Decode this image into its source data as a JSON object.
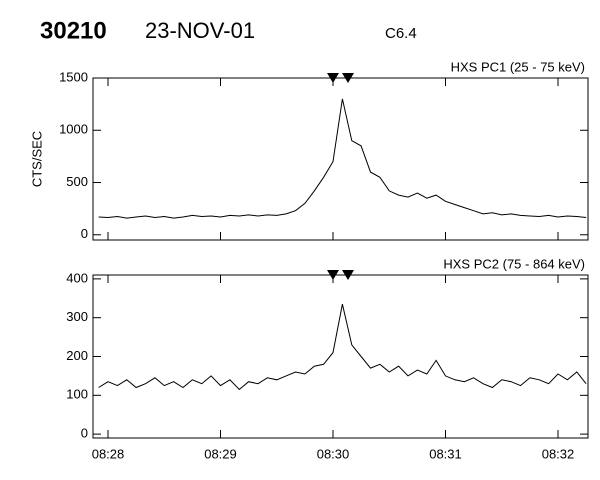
{
  "header": {
    "id": "30210",
    "date": "23-NOV-01",
    "class": "C6.4"
  },
  "chart_data": [
    {
      "type": "line",
      "title": "HXS PC1 (25 - 75 keV)",
      "ylabel": "CTS/SEC",
      "color": "#000000",
      "x": [
        1675,
        1680,
        1685,
        1690,
        1695,
        1700,
        1705,
        1710,
        1715,
        1720,
        1725,
        1730,
        1735,
        1740,
        1745,
        1750,
        1755,
        1760,
        1765,
        1770,
        1775,
        1780,
        1785,
        1790,
        1795,
        1800,
        1805,
        1810,
        1815,
        1820,
        1825,
        1830,
        1835,
        1840,
        1845,
        1850,
        1855,
        1860,
        1865,
        1870,
        1875,
        1880,
        1885,
        1890,
        1895,
        1900,
        1905,
        1910,
        1915,
        1920,
        1925,
        1930,
        1935
      ],
      "values": [
        170,
        165,
        175,
        160,
        170,
        180,
        165,
        175,
        160,
        170,
        185,
        175,
        180,
        170,
        185,
        180,
        190,
        180,
        190,
        185,
        200,
        230,
        300,
        420,
        550,
        700,
        1300,
        900,
        850,
        600,
        550,
        420,
        380,
        360,
        400,
        350,
        380,
        320,
        290,
        260,
        230,
        200,
        210,
        190,
        200,
        185,
        180,
        175,
        185,
        170,
        180,
        175,
        165
      ],
      "xlim": [
        1672,
        1936
      ],
      "ylim": [
        -50,
        1500
      ],
      "yticks": [
        0,
        500,
        1000,
        1500
      ]
    },
    {
      "type": "line",
      "title": "HXS PC2 (75 - 864 keV)",
      "color": "#000000",
      "x": [
        1675,
        1680,
        1685,
        1690,
        1695,
        1700,
        1705,
        1710,
        1715,
        1720,
        1725,
        1730,
        1735,
        1740,
        1745,
        1750,
        1755,
        1760,
        1765,
        1770,
        1775,
        1780,
        1785,
        1790,
        1795,
        1800,
        1805,
        1810,
        1815,
        1820,
        1825,
        1830,
        1835,
        1840,
        1845,
        1850,
        1855,
        1860,
        1865,
        1870,
        1875,
        1880,
        1885,
        1890,
        1895,
        1900,
        1905,
        1910,
        1915,
        1920,
        1925,
        1930,
        1935
      ],
      "values": [
        120,
        135,
        125,
        140,
        120,
        130,
        145,
        125,
        135,
        120,
        140,
        130,
        150,
        125,
        140,
        115,
        135,
        130,
        145,
        140,
        150,
        160,
        155,
        175,
        180,
        210,
        335,
        230,
        200,
        170,
        180,
        160,
        175,
        150,
        165,
        155,
        190,
        150,
        140,
        135,
        145,
        130,
        120,
        140,
        135,
        125,
        145,
        140,
        130,
        155,
        140,
        160,
        130
      ],
      "xlim": [
        1672,
        1936
      ],
      "ylim": [
        -10,
        410
      ],
      "yticks": [
        0,
        100,
        200,
        300,
        400
      ],
      "xticks": [
        {
          "value": 1680,
          "label": "08:28"
        },
        {
          "value": 1740,
          "label": "08:29"
        },
        {
          "value": 1800,
          "label": "08:30"
        },
        {
          "value": 1860,
          "label": "08:31"
        },
        {
          "value": 1920,
          "label": "08:32"
        }
      ]
    }
  ]
}
